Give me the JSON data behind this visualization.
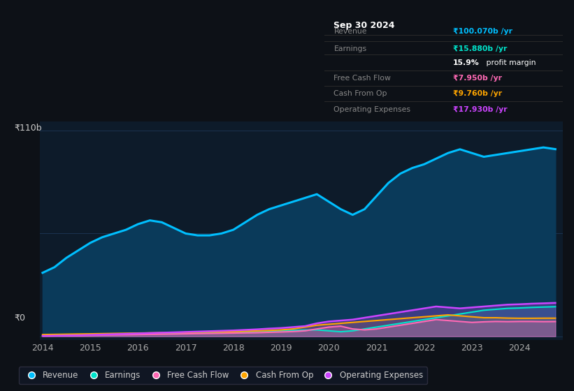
{
  "bg_color": "#0d1117",
  "plot_bg_color": "#0d1b2a",
  "ylabel_top": "₹110b",
  "ylabel_bottom": "₹0",
  "x_labels": [
    "2014",
    "2015",
    "2016",
    "2017",
    "2018",
    "2019",
    "2020",
    "2021",
    "2022",
    "2023",
    "2024"
  ],
  "years": [
    2014.0,
    2014.25,
    2014.5,
    2014.75,
    2015.0,
    2015.25,
    2015.5,
    2015.75,
    2016.0,
    2016.25,
    2016.5,
    2016.75,
    2017.0,
    2017.25,
    2017.5,
    2017.75,
    2018.0,
    2018.25,
    2018.5,
    2018.75,
    2019.0,
    2019.25,
    2019.5,
    2019.75,
    2020.0,
    2020.25,
    2020.5,
    2020.75,
    2021.0,
    2021.25,
    2021.5,
    2021.75,
    2022.0,
    2022.25,
    2022.5,
    2022.75,
    2023.0,
    2023.25,
    2023.5,
    2023.75,
    2024.0,
    2024.25,
    2024.5,
    2024.75
  ],
  "revenue": [
    34,
    37,
    42,
    46,
    50,
    53,
    55,
    57,
    60,
    62,
    61,
    58,
    55,
    54,
    54,
    55,
    57,
    61,
    65,
    68,
    70,
    72,
    74,
    76,
    72,
    68,
    65,
    68,
    75,
    82,
    87,
    90,
    92,
    95,
    98,
    100,
    98,
    96,
    97,
    98,
    99,
    100,
    101,
    100.07
  ],
  "earnings": [
    0.5,
    0.6,
    0.7,
    0.8,
    1.0,
    1.2,
    1.3,
    1.4,
    1.5,
    1.6,
    1.7,
    1.8,
    1.9,
    2.0,
    2.1,
    2.2,
    2.3,
    2.5,
    2.7,
    2.9,
    3.0,
    3.2,
    3.4,
    3.5,
    3.0,
    2.5,
    3.0,
    4.0,
    5.0,
    6.0,
    7.0,
    8.0,
    9.0,
    10.0,
    11.0,
    12.0,
    13.0,
    14.0,
    14.5,
    15.0,
    15.2,
    15.5,
    15.7,
    15.88
  ],
  "free_cash_flow": [
    0.2,
    0.3,
    0.4,
    0.5,
    0.6,
    0.7,
    0.8,
    0.9,
    1.0,
    1.1,
    1.2,
    1.3,
    1.4,
    1.5,
    1.6,
    1.7,
    1.8,
    1.9,
    2.0,
    2.2,
    2.4,
    2.6,
    3.0,
    4.0,
    5.0,
    5.5,
    4.0,
    3.5,
    4.0,
    5.0,
    6.0,
    7.0,
    8.0,
    9.0,
    8.5,
    8.0,
    7.5,
    7.8,
    8.0,
    7.9,
    8.0,
    8.0,
    7.9,
    7.95
  ],
  "cash_from_op": [
    1.0,
    1.1,
    1.2,
    1.3,
    1.4,
    1.5,
    1.6,
    1.7,
    1.8,
    1.9,
    2.0,
    2.1,
    2.2,
    2.3,
    2.4,
    2.5,
    2.6,
    2.8,
    3.0,
    3.2,
    3.5,
    4.0,
    5.0,
    6.0,
    6.5,
    7.0,
    7.5,
    8.0,
    8.5,
    9.0,
    9.5,
    10.0,
    10.5,
    11.0,
    11.5,
    11.0,
    10.5,
    10.0,
    10.0,
    9.8,
    9.7,
    9.7,
    9.75,
    9.76
  ],
  "operating_expenses": [
    0.3,
    0.4,
    0.5,
    0.6,
    0.8,
    1.0,
    1.2,
    1.4,
    1.6,
    1.8,
    2.0,
    2.2,
    2.4,
    2.6,
    2.8,
    3.0,
    3.2,
    3.5,
    3.8,
    4.2,
    4.5,
    5.0,
    5.5,
    7.0,
    8.0,
    8.5,
    9.0,
    10.0,
    11.0,
    12.0,
    13.0,
    14.0,
    15.0,
    16.0,
    15.5,
    15.0,
    15.5,
    16.0,
    16.5,
    17.0,
    17.2,
    17.5,
    17.7,
    17.93
  ],
  "revenue_color": "#00bfff",
  "earnings_color": "#00e5cc",
  "free_cash_flow_color": "#ff69b4",
  "cash_from_op_color": "#ffa500",
  "operating_expenses_color": "#cc44ff",
  "revenue_fill_color": "#0a3a5a",
  "grid_color": "#1e3a5a",
  "legend_labels": [
    "Revenue",
    "Earnings",
    "Free Cash Flow",
    "Cash From Op",
    "Operating Expenses"
  ],
  "info_box": {
    "date": "Sep 30 2024",
    "revenue_val": "₹100.070b /yr",
    "earnings_val": "₹15.880b /yr",
    "profit_margin": "15.9% profit margin",
    "fcf_val": "₹7.950b /yr",
    "cash_op_val": "₹9.760b /yr",
    "op_exp_val": "₹17.930b /yr"
  }
}
